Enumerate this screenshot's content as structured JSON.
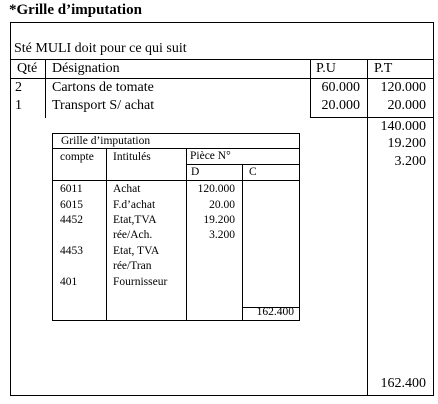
{
  "title": "*Grille d’imputation",
  "intro": "Sté MULI doit pour ce qui suit",
  "headers": {
    "qte": "Qté",
    "designation": "Désignation",
    "pu": "P.U",
    "pt": "P.T"
  },
  "rows": [
    {
      "qte": "2",
      "designation": "Cartons de tomate",
      "pu": "60.000",
      "pt": "120.000"
    },
    {
      "qte": "1",
      "designation": "Transport S/ achat",
      "pu": "20.000",
      "pt": "20.000"
    }
  ],
  "subtotals": [
    "140.000",
    "19.200",
    "3.200"
  ],
  "total": "162.400",
  "grille": {
    "title": "Grille d’imputation",
    "headers": {
      "compte": "compte",
      "intitules": "Intitulés",
      "piece": "Pièce N°",
      "debit": "D",
      "credit": "C"
    },
    "entries": [
      {
        "compte": "6011",
        "intitule": "Achat",
        "debit": "120.000"
      },
      {
        "compte": "6015",
        "intitule": "F.d’achat",
        "debit": "20.00"
      },
      {
        "compte": "4452",
        "intitule": "Etat,TVA",
        "debit": "19.200"
      },
      {
        "compte": "",
        "intitule": "rée/Ach.",
        "debit": "3.200"
      },
      {
        "compte": "4453",
        "intitule": "Etat, TVA",
        "debit": ""
      },
      {
        "compte": "",
        "intitule": "rée/Tran",
        "debit": ""
      },
      {
        "compte": "401",
        "intitule": "Fournisseur",
        "debit": ""
      }
    ],
    "credit_total": "162.400"
  }
}
